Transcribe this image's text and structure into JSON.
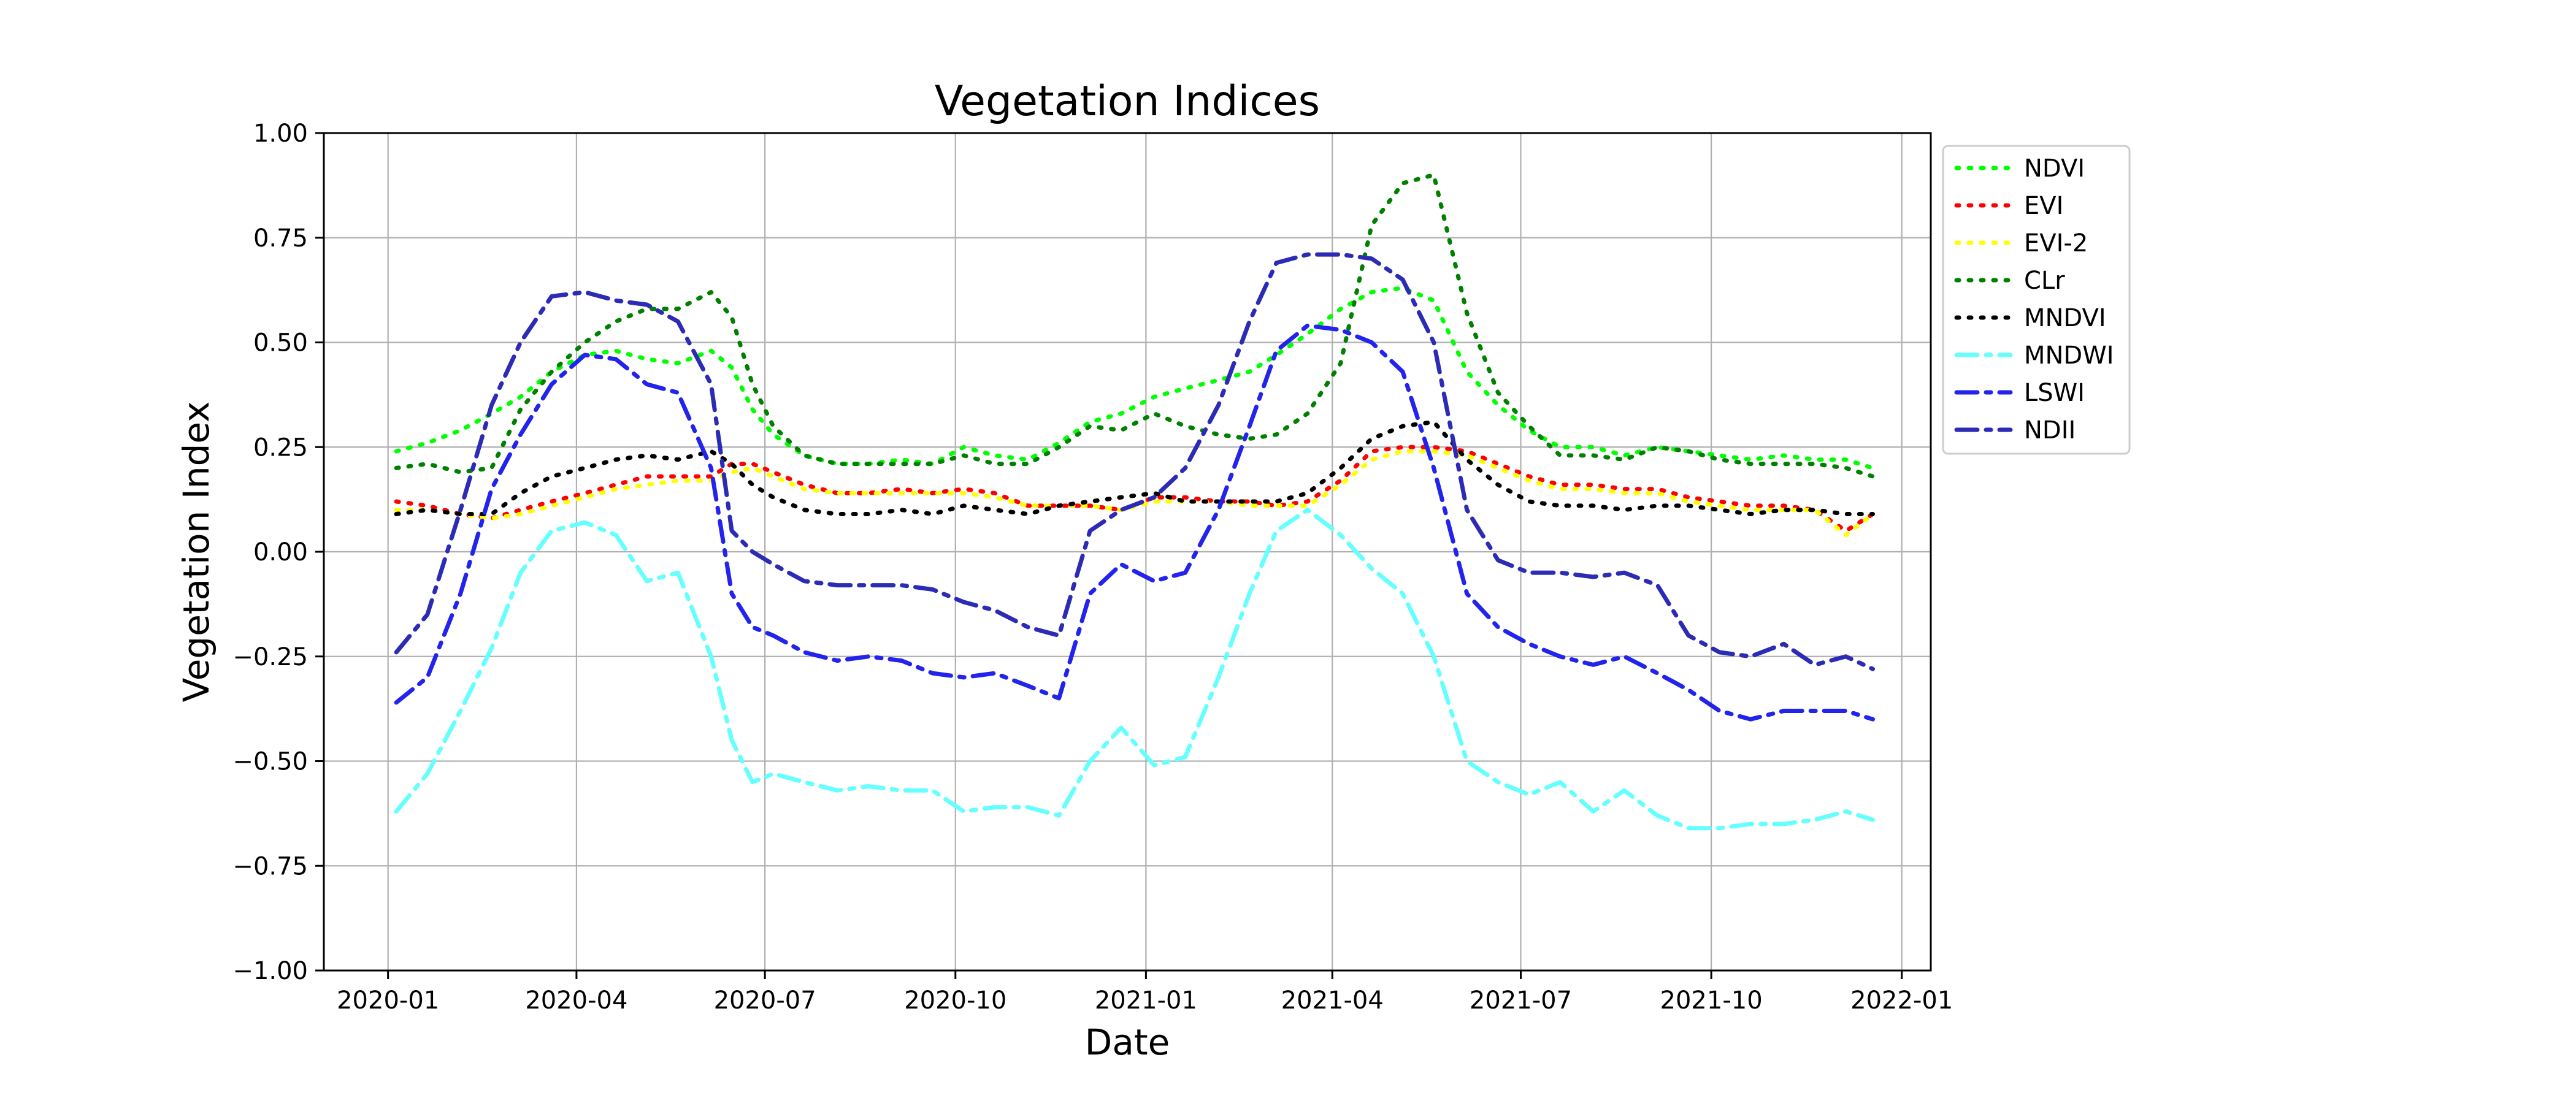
{
  "chart_data": {
    "type": "line",
    "title": "Vegetation Indices",
    "xlabel": "Date",
    "ylabel": "Vegetation Index",
    "xlim": [
      "2019-12-01",
      "2022-01-15"
    ],
    "ylim": [
      -1.0,
      1.0
    ],
    "x_ticks": [
      "2020-01-01",
      "2020-04-01",
      "2020-07-01",
      "2020-10-01",
      "2021-01-01",
      "2021-04-01",
      "2021-07-01",
      "2021-10-01",
      "2022-01-01"
    ],
    "x_tick_labels": [
      "2020-01",
      "2020-04",
      "2020-07",
      "2020-10",
      "2021-01",
      "2021-04",
      "2021-07",
      "2021-10",
      "2022-01"
    ],
    "y_ticks": [
      -1.0,
      -0.75,
      -0.5,
      -0.25,
      0.0,
      0.25,
      0.5,
      0.75,
      1.0
    ],
    "y_tick_labels": [
      "−1.00",
      "−0.75",
      "−0.50",
      "−0.25",
      "0.00",
      "0.25",
      "0.50",
      "0.75",
      "1.00"
    ],
    "grid": true,
    "legend_position": "outside-right-top",
    "x": [
      "2020-01-05",
      "2020-01-20",
      "2020-02-05",
      "2020-02-20",
      "2020-03-05",
      "2020-03-20",
      "2020-04-05",
      "2020-04-20",
      "2020-05-05",
      "2020-05-20",
      "2020-06-05",
      "2020-06-15",
      "2020-06-25",
      "2020-07-05",
      "2020-07-20",
      "2020-08-05",
      "2020-08-20",
      "2020-09-05",
      "2020-09-20",
      "2020-10-05",
      "2020-10-20",
      "2020-11-05",
      "2020-11-20",
      "2020-12-05",
      "2020-12-20",
      "2021-01-05",
      "2021-01-20",
      "2021-02-05",
      "2021-02-20",
      "2021-03-05",
      "2021-03-20",
      "2021-04-05",
      "2021-04-20",
      "2021-05-05",
      "2021-05-20",
      "2021-06-05",
      "2021-06-20",
      "2021-07-05",
      "2021-07-20",
      "2021-08-05",
      "2021-08-20",
      "2021-09-05",
      "2021-09-20",
      "2021-10-05",
      "2021-10-20",
      "2021-11-05",
      "2021-11-20",
      "2021-12-05",
      "2021-12-18"
    ],
    "series": [
      {
        "name": "NDVI",
        "color": "#00ff00",
        "dash": "dotted",
        "values": [
          0.24,
          0.26,
          0.29,
          0.33,
          0.37,
          0.43,
          0.47,
          0.48,
          0.46,
          0.45,
          0.48,
          0.44,
          0.34,
          0.28,
          0.23,
          0.21,
          0.21,
          0.22,
          0.21,
          0.25,
          0.23,
          0.22,
          0.26,
          0.31,
          0.33,
          0.37,
          0.39,
          0.41,
          0.43,
          0.47,
          0.52,
          0.58,
          0.62,
          0.63,
          0.6,
          0.43,
          0.35,
          0.29,
          0.25,
          0.25,
          0.23,
          0.25,
          0.24,
          0.23,
          0.22,
          0.23,
          0.22,
          0.22,
          0.2
        ]
      },
      {
        "name": "EVI",
        "color": "#ff0000",
        "dash": "dotted",
        "values": [
          0.12,
          0.11,
          0.09,
          0.08,
          0.1,
          0.12,
          0.14,
          0.16,
          0.18,
          0.18,
          0.18,
          0.21,
          0.21,
          0.19,
          0.16,
          0.14,
          0.14,
          0.15,
          0.14,
          0.15,
          0.14,
          0.11,
          0.11,
          0.11,
          0.1,
          0.13,
          0.13,
          0.12,
          0.12,
          0.11,
          0.12,
          0.17,
          0.24,
          0.25,
          0.25,
          0.24,
          0.21,
          0.18,
          0.16,
          0.16,
          0.15,
          0.15,
          0.13,
          0.12,
          0.11,
          0.11,
          0.1,
          0.05,
          0.09
        ]
      },
      {
        "name": "EVI-2",
        "color": "#ffff00",
        "dash": "dotted",
        "values": [
          0.1,
          0.1,
          0.09,
          0.08,
          0.09,
          0.11,
          0.13,
          0.15,
          0.16,
          0.17,
          0.17,
          0.19,
          0.2,
          0.18,
          0.15,
          0.14,
          0.14,
          0.14,
          0.14,
          0.14,
          0.13,
          0.11,
          0.11,
          0.11,
          0.1,
          0.12,
          0.12,
          0.12,
          0.11,
          0.11,
          0.11,
          0.16,
          0.22,
          0.24,
          0.24,
          0.23,
          0.2,
          0.17,
          0.15,
          0.15,
          0.14,
          0.14,
          0.12,
          0.11,
          0.1,
          0.1,
          0.1,
          0.04,
          0.09
        ]
      },
      {
        "name": "CLr",
        "color": "#008000",
        "dash": "dotted",
        "values": [
          0.2,
          0.21,
          0.19,
          0.2,
          0.34,
          0.43,
          0.5,
          0.55,
          0.58,
          0.58,
          0.62,
          0.56,
          0.4,
          0.3,
          0.23,
          0.21,
          0.21,
          0.21,
          0.21,
          0.23,
          0.21,
          0.21,
          0.25,
          0.3,
          0.29,
          0.33,
          0.3,
          0.28,
          0.27,
          0.28,
          0.33,
          0.45,
          0.78,
          0.88,
          0.9,
          0.57,
          0.38,
          0.3,
          0.23,
          0.23,
          0.22,
          0.25,
          0.24,
          0.22,
          0.21,
          0.21,
          0.21,
          0.2,
          0.18
        ]
      },
      {
        "name": "MNDVI",
        "color": "#000000",
        "dash": "dotted",
        "values": [
          0.09,
          0.1,
          0.09,
          0.09,
          0.14,
          0.18,
          0.2,
          0.22,
          0.23,
          0.22,
          0.24,
          0.21,
          0.16,
          0.13,
          0.1,
          0.09,
          0.09,
          0.1,
          0.09,
          0.11,
          0.1,
          0.09,
          0.11,
          0.12,
          0.13,
          0.14,
          0.12,
          0.12,
          0.12,
          0.12,
          0.14,
          0.2,
          0.27,
          0.3,
          0.31,
          0.22,
          0.16,
          0.12,
          0.11,
          0.11,
          0.1,
          0.11,
          0.11,
          0.1,
          0.09,
          0.1,
          0.1,
          0.09,
          0.09
        ]
      },
      {
        "name": "MNDWI",
        "color": "#66ffff",
        "dash": "dashdot",
        "values": [
          -0.62,
          -0.53,
          -0.38,
          -0.23,
          -0.05,
          0.05,
          0.07,
          0.04,
          -0.07,
          -0.05,
          -0.25,
          -0.45,
          -0.55,
          -0.53,
          -0.55,
          -0.57,
          -0.56,
          -0.57,
          -0.57,
          -0.62,
          -0.61,
          -0.61,
          -0.63,
          -0.5,
          -0.42,
          -0.51,
          -0.49,
          -0.3,
          -0.1,
          0.05,
          0.1,
          0.04,
          -0.04,
          -0.1,
          -0.25,
          -0.5,
          -0.55,
          -0.58,
          -0.55,
          -0.62,
          -0.57,
          -0.63,
          -0.66,
          -0.66,
          -0.65,
          -0.65,
          -0.64,
          -0.62,
          -0.64
        ]
      },
      {
        "name": "LSWI",
        "color": "#2323ee",
        "dash": "dashdot",
        "values": [
          -0.36,
          -0.3,
          -0.1,
          0.15,
          0.28,
          0.4,
          0.47,
          0.46,
          0.4,
          0.38,
          0.2,
          -0.1,
          -0.18,
          -0.2,
          -0.24,
          -0.26,
          -0.25,
          -0.26,
          -0.29,
          -0.3,
          -0.29,
          -0.32,
          -0.35,
          -0.1,
          -0.03,
          -0.07,
          -0.05,
          0.1,
          0.3,
          0.48,
          0.54,
          0.53,
          0.5,
          0.43,
          0.2,
          -0.1,
          -0.18,
          -0.22,
          -0.25,
          -0.27,
          -0.25,
          -0.29,
          -0.33,
          -0.38,
          -0.4,
          -0.38,
          -0.38,
          -0.38,
          -0.4
        ]
      },
      {
        "name": "NDII",
        "color": "#2b2bb5",
        "dash": "dashdot",
        "values": [
          -0.24,
          -0.15,
          0.1,
          0.35,
          0.5,
          0.61,
          0.62,
          0.6,
          0.59,
          0.55,
          0.4,
          0.05,
          0.0,
          -0.03,
          -0.07,
          -0.08,
          -0.08,
          -0.08,
          -0.09,
          -0.12,
          -0.14,
          -0.18,
          -0.2,
          0.05,
          0.1,
          0.13,
          0.2,
          0.35,
          0.55,
          0.69,
          0.71,
          0.71,
          0.7,
          0.65,
          0.5,
          0.1,
          -0.02,
          -0.05,
          -0.05,
          -0.06,
          -0.05,
          -0.08,
          -0.2,
          -0.24,
          -0.25,
          -0.22,
          -0.27,
          -0.25,
          -0.28
        ]
      }
    ]
  }
}
